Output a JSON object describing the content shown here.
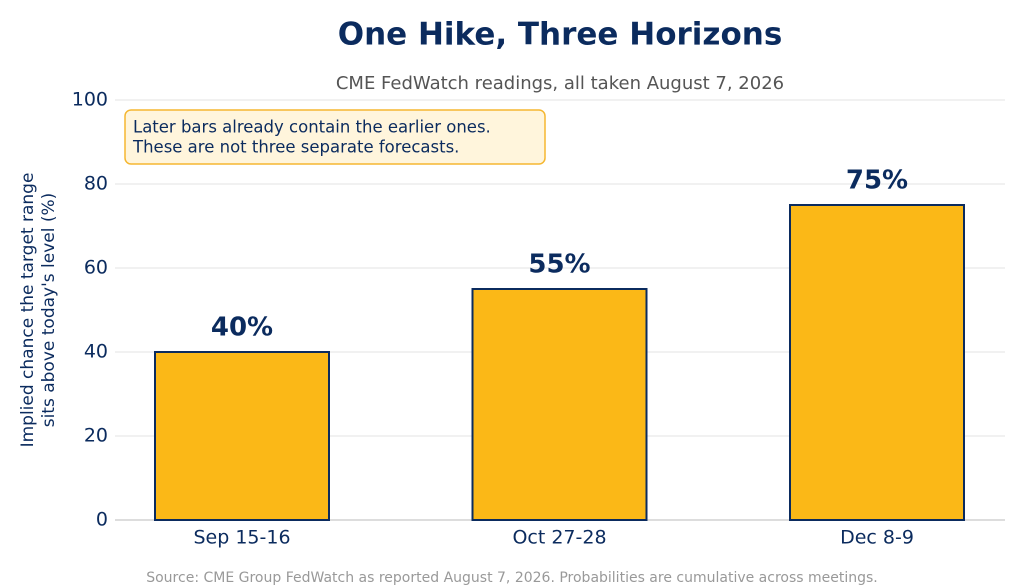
{
  "chart_data": {
    "type": "bar",
    "title": "One Hike, Three Horizons",
    "subtitle": "CME FedWatch readings, all taken August 7, 2026",
    "ylabel": [
      "Implied chance the target range",
      "sits above today's level (%)"
    ],
    "annotation": [
      "Later bars already contain the earlier ones.",
      "These are not three separate forecasts."
    ],
    "source": "Source: CME Group FedWatch as reported August 7, 2026. Probabilities are cumulative across meetings.",
    "categories": [
      "Sep 15-16",
      "Oct 27-28",
      "Dec 8-9"
    ],
    "values": [
      40,
      55,
      75
    ],
    "value_labels": [
      "40%",
      "55%",
      "75%"
    ],
    "color": "#fbb817",
    "edgecolor": "#0b2b5e",
    "ylim": [
      0,
      100
    ],
    "yticks": [
      0,
      20,
      40,
      60,
      80,
      100
    ],
    "grid": true
  }
}
